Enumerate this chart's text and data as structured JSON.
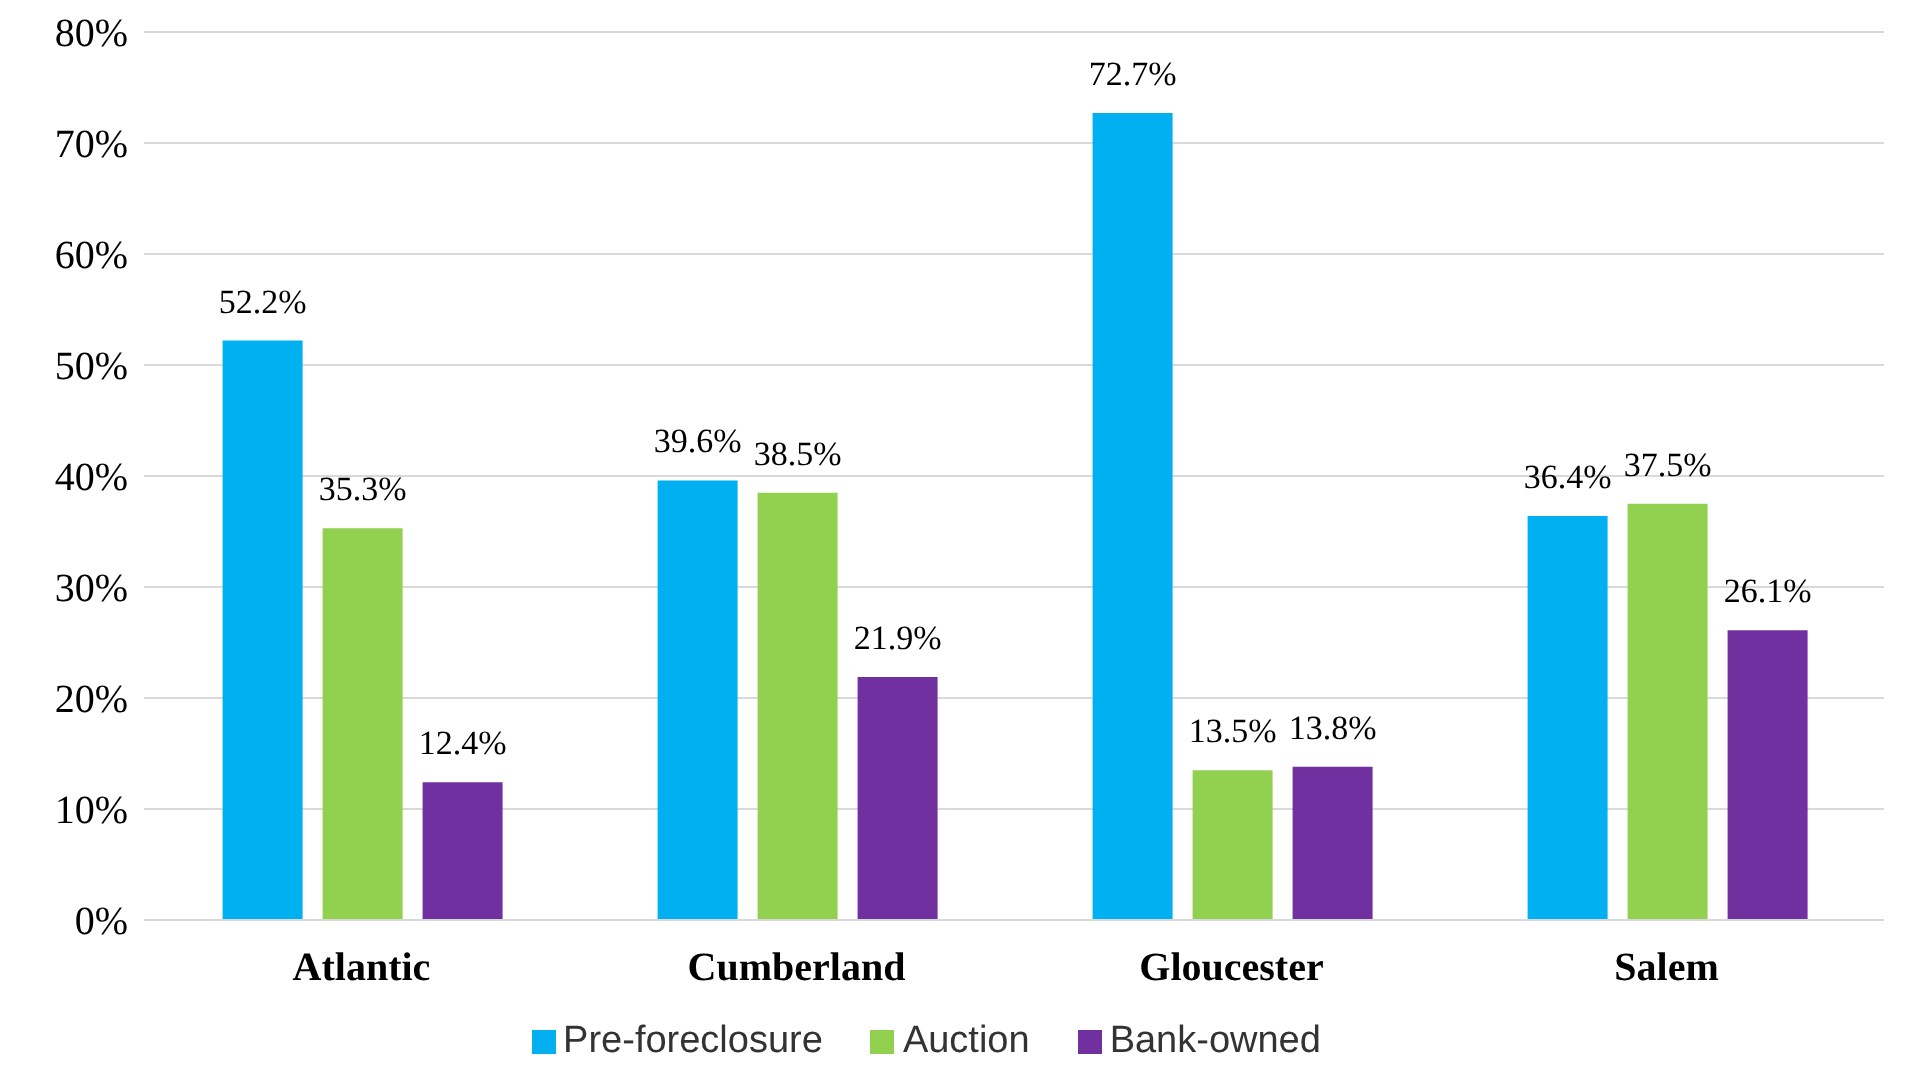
{
  "chart_data": {
    "type": "bar",
    "categories": [
      "Atlantic",
      "Cumberland",
      "Gloucester",
      "Salem"
    ],
    "series": [
      {
        "name": "Pre-foreclosure",
        "color": "#00b0f0",
        "values": [
          52.2,
          39.6,
          72.7,
          36.4
        ]
      },
      {
        "name": "Auction",
        "color": "#92d050",
        "values": [
          35.3,
          38.5,
          13.5,
          37.5
        ]
      },
      {
        "name": "Bank-owned",
        "color": "#7030a0",
        "values": [
          12.4,
          21.9,
          13.8,
          26.1
        ]
      }
    ],
    "ylim": [
      0,
      80
    ],
    "yticks": [
      {
        "value": 0,
        "label": "0%"
      },
      {
        "value": 10,
        "label": "10%"
      },
      {
        "value": 20,
        "label": "20%"
      },
      {
        "value": 30,
        "label": "30%"
      },
      {
        "value": 40,
        "label": "40%"
      },
      {
        "value": 50,
        "label": "50%"
      },
      {
        "value": 60,
        "label": "60%"
      },
      {
        "value": 70,
        "label": "70%"
      },
      {
        "value": 80,
        "label": "80%"
      }
    ],
    "value_labels": [
      [
        "52.2%",
        "39.6%",
        "72.7%",
        "36.4%"
      ],
      [
        "35.3%",
        "38.5%",
        "13.5%",
        "37.5%"
      ],
      [
        "12.4%",
        "21.9%",
        "13.8%",
        "26.1%"
      ]
    ],
    "grid": "y",
    "legend": "bottom"
  }
}
